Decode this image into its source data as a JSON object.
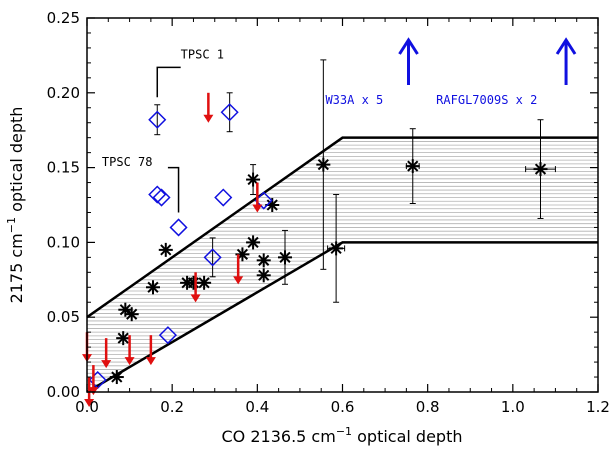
{
  "chart_data": {
    "type": "scatter",
    "xlabel_prefix": "CO 2136.5 cm",
    "xlabel_sup": "−1",
    "xlabel_suffix": " optical depth",
    "ylabel_prefix": "2175 cm",
    "ylabel_sup": "−1",
    "ylabel_suffix": " optical depth",
    "xlim": [
      0.0,
      1.2
    ],
    "ylim": [
      0.0,
      0.25
    ],
    "x_ticks": [
      0.0,
      0.2,
      0.4,
      0.6,
      0.8,
      1.0,
      1.2
    ],
    "x_tick_labels": [
      "0.0",
      "0.2",
      "0.4",
      "0.6",
      "0.8",
      "1.0",
      "1.2"
    ],
    "y_ticks": [
      0.0,
      0.05,
      0.1,
      0.15,
      0.2,
      0.25
    ],
    "y_tick_labels": [
      "0.00",
      "0.05",
      "0.10",
      "0.15",
      "0.20",
      "0.25"
    ],
    "colors": {
      "asterisk": "#000000",
      "diamond": "#1010e0",
      "arrow": "#e01010",
      "band": "#000000",
      "up_arrow": "#1010e0"
    },
    "band": {
      "upper": [
        [
          0.0,
          0.05
        ],
        [
          0.6,
          0.17
        ],
        [
          1.2,
          0.17
        ]
      ],
      "lower": [
        [
          0.0,
          0.0
        ],
        [
          0.6,
          0.1
        ],
        [
          1.2,
          0.1
        ]
      ]
    },
    "asterisk_series": [
      {
        "x": 0.155,
        "y": 0.07
      },
      {
        "x": 0.185,
        "y": 0.095
      },
      {
        "x": 0.09,
        "y": 0.055
      },
      {
        "x": 0.105,
        "y": 0.052
      },
      {
        "x": 0.085,
        "y": 0.036
      },
      {
        "x": 0.07,
        "y": 0.01
      },
      {
        "x": 0.235,
        "y": 0.073
      },
      {
        "x": 0.25,
        "y": 0.073
      },
      {
        "x": 0.275,
        "y": 0.073
      },
      {
        "x": 0.365,
        "y": 0.092
      },
      {
        "x": 0.39,
        "y": 0.1
      },
      {
        "x": 0.39,
        "y": 0.142,
        "yerr": 0.01
      },
      {
        "x": 0.415,
        "y": 0.088
      },
      {
        "x": 0.415,
        "y": 0.078
      },
      {
        "x": 0.435,
        "y": 0.125
      },
      {
        "x": 0.465,
        "y": 0.09,
        "yerr": 0.018
      },
      {
        "x": 0.555,
        "y": 0.152,
        "yerr": 0.07
      },
      {
        "x": 0.585,
        "y": 0.096,
        "yerr": 0.036,
        "xerr": 0.02
      },
      {
        "x": 0.765,
        "y": 0.151,
        "yerr": 0.025,
        "xerr": 0.015
      },
      {
        "x": 1.065,
        "y": 0.149,
        "yerr": 0.033,
        "xerr": 0.035
      }
    ],
    "diamond_series": [
      {
        "x": 0.165,
        "y": 0.182,
        "yerr": 0.01
      },
      {
        "x": 0.335,
        "y": 0.187,
        "yerr": 0.013
      },
      {
        "x": 0.165,
        "y": 0.132
      },
      {
        "x": 0.175,
        "y": 0.13
      },
      {
        "x": 0.215,
        "y": 0.11
      },
      {
        "x": 0.32,
        "y": 0.13
      },
      {
        "x": 0.295,
        "y": 0.09,
        "yerr": 0.013
      },
      {
        "x": 0.415,
        "y": 0.128
      },
      {
        "x": 0.19,
        "y": 0.038
      },
      {
        "x": 0.025,
        "y": 0.008
      }
    ],
    "upper_limit_arrows": [
      {
        "x": 0.0,
        "y": 0.04
      },
      {
        "x": 0.045,
        "y": 0.036
      },
      {
        "x": 0.015,
        "y": 0.018
      },
      {
        "x": 0.005,
        "y": 0.01
      },
      {
        "x": 0.1,
        "y": 0.038
      },
      {
        "x": 0.15,
        "y": 0.038
      },
      {
        "x": 0.285,
        "y": 0.2
      },
      {
        "x": 0.255,
        "y": 0.08
      },
      {
        "x": 0.355,
        "y": 0.092
      },
      {
        "x": 0.4,
        "y": 0.14
      }
    ],
    "offscale_arrows": [
      {
        "x": 0.755,
        "label": "W33A x 5",
        "label_x": 0.56
      },
      {
        "x": 1.125,
        "label": "RAFGL7009S x 2",
        "label_x": 0.82
      }
    ],
    "annotations": [
      {
        "text": "TPSC 1",
        "x": 0.22,
        "y": 0.223
      },
      {
        "text": "TPSC 78",
        "x": 0.035,
        "y": 0.151
      }
    ]
  }
}
